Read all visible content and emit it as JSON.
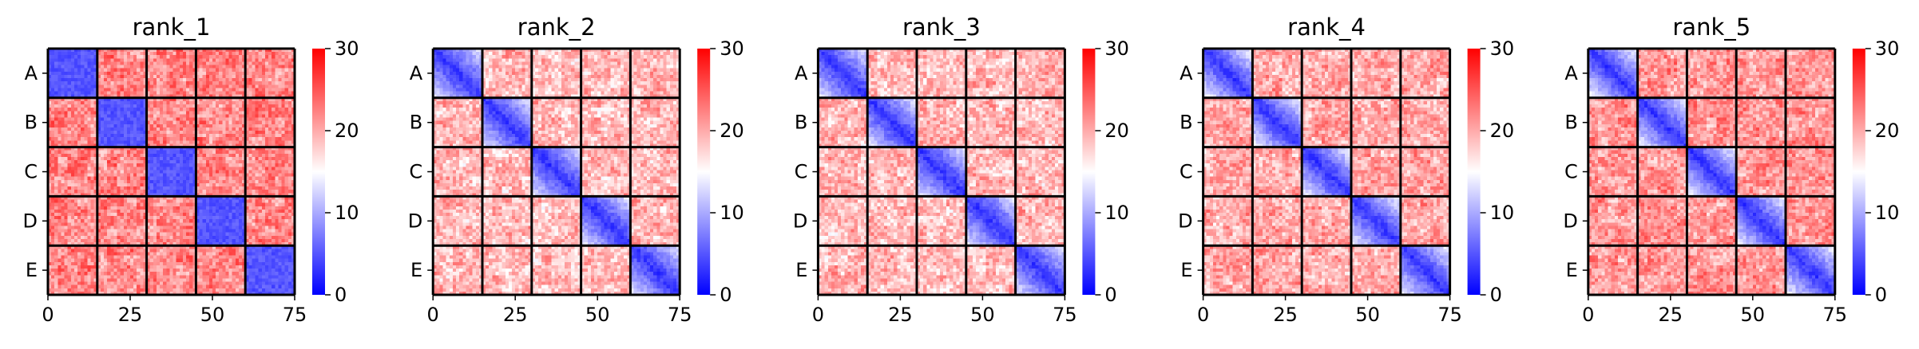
{
  "chart_data": [
    {
      "type": "heatmap",
      "title": "rank_1",
      "x_ticks": [
        "0",
        "25",
        "50",
        "75"
      ],
      "y_labels": [
        "A",
        "B",
        "C",
        "D",
        "E"
      ],
      "xlim": [
        0,
        75
      ],
      "n": 75,
      "blocks": 5,
      "block_size": 15,
      "colorbar": {
        "min": 0,
        "max": 30,
        "ticks": [
          "0",
          "10",
          "20",
          "30"
        ],
        "colormap": [
          "#0000ff",
          "#ffffff",
          "#ff0000"
        ]
      },
      "values": {
        "diag_block": 5,
        "off_block": 22,
        "noise": 3
      }
    },
    {
      "type": "heatmap",
      "title": "rank_2",
      "x_ticks": [
        "0",
        "25",
        "50",
        "75"
      ],
      "y_labels": [
        "A",
        "B",
        "C",
        "D",
        "E"
      ],
      "xlim": [
        0,
        75
      ],
      "n": 75,
      "blocks": 5,
      "block_size": 15,
      "colorbar": {
        "min": 0,
        "max": 30,
        "ticks": [
          "0",
          "10",
          "20",
          "30"
        ],
        "colormap": [
          "#0000ff",
          "#ffffff",
          "#ff0000"
        ]
      },
      "values": {
        "diag": 3,
        "diag_block_far": 14,
        "off_block": 19,
        "noise": 3
      }
    },
    {
      "type": "heatmap",
      "title": "rank_3",
      "x_ticks": [
        "0",
        "25",
        "50",
        "75"
      ],
      "y_labels": [
        "A",
        "B",
        "C",
        "D",
        "E"
      ],
      "xlim": [
        0,
        75
      ],
      "n": 75,
      "blocks": 5,
      "block_size": 15,
      "colorbar": {
        "min": 0,
        "max": 30,
        "ticks": [
          "0",
          "10",
          "20",
          "30"
        ],
        "colormap": [
          "#0000ff",
          "#ffffff",
          "#ff0000"
        ]
      },
      "values": {
        "diag": 3,
        "diag_block_far": 14,
        "off_block": 19,
        "noise": 3
      }
    },
    {
      "type": "heatmap",
      "title": "rank_4",
      "x_ticks": [
        "0",
        "25",
        "50",
        "75"
      ],
      "y_labels": [
        "A",
        "B",
        "C",
        "D",
        "E"
      ],
      "xlim": [
        0,
        75
      ],
      "n": 75,
      "blocks": 5,
      "block_size": 15,
      "colorbar": {
        "min": 0,
        "max": 30,
        "ticks": [
          "0",
          "10",
          "20",
          "30"
        ],
        "colormap": [
          "#0000ff",
          "#ffffff",
          "#ff0000"
        ]
      },
      "values": {
        "diag": 3,
        "diag_block_far": 15,
        "off_block": 20,
        "noise": 3
      }
    },
    {
      "type": "heatmap",
      "title": "rank_5",
      "x_ticks": [
        "0",
        "25",
        "50",
        "75"
      ],
      "y_labels": [
        "A",
        "B",
        "C",
        "D",
        "E"
      ],
      "xlim": [
        0,
        75
      ],
      "n": 75,
      "blocks": 5,
      "block_size": 15,
      "colorbar": {
        "min": 0,
        "max": 30,
        "ticks": [
          "0",
          "10",
          "20",
          "30"
        ],
        "colormap": [
          "#0000ff",
          "#ffffff",
          "#ff0000"
        ]
      },
      "values": {
        "diag": 3,
        "diag_block_far": 15,
        "off_block": 21,
        "noise": 3
      }
    }
  ]
}
